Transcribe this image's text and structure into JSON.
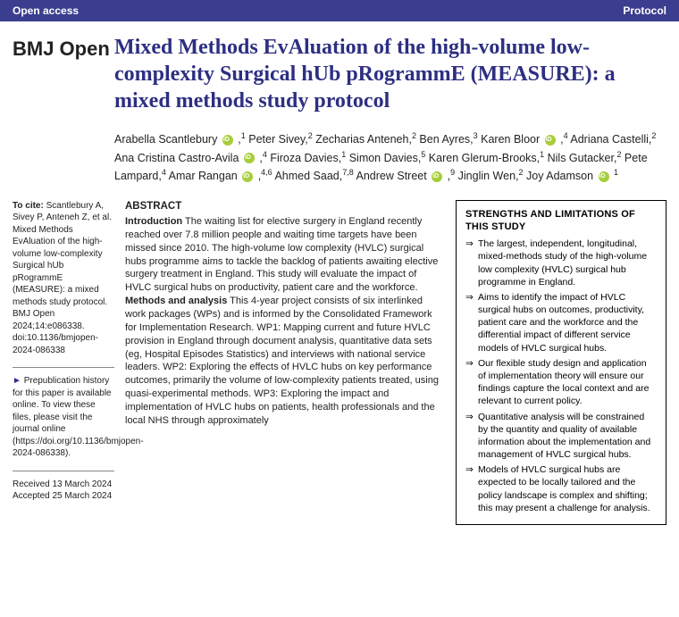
{
  "topbar": {
    "left": "Open access",
    "right": "Protocol"
  },
  "journal": "BMJ Open",
  "title": "Mixed Methods EvAluation of the high-volume low-complexity Surgical hUb pRogrammE (MEASURE): a mixed methods study protocol",
  "authors_html": "Arabella Scantlebury <span class='orcid'></span> ,<span class='sup'>1</span> Peter Sivey,<span class='sup'>2</span> Zecharias Anteneh,<span class='sup'>2</span> Ben Ayres,<span class='sup'>3</span> Karen Bloor <span class='orcid'></span> ,<span class='sup'>4</span> Adriana Castelli,<span class='sup'>2</span> Ana Cristina Castro-Avila <span class='orcid'></span> ,<span class='sup'>4</span> Firoza Davies,<span class='sup'>1</span> Simon Davies,<span class='sup'>5</span> Karen Glerum-Brooks,<span class='sup'>1</span> Nils Gutacker,<span class='sup'>2</span> Pete Lampard,<span class='sup'>4</span> Amar Rangan <span class='orcid'></span> ,<span class='sup'>4,6</span> Ahmed Saad,<span class='sup'>7,8</span> Andrew Street <span class='orcid'></span> ,<span class='sup'>9</span> Jinglin Wen,<span class='sup'>2</span> Joy Adamson <span class='orcid'></span> <span class='sup'>1</span>",
  "cite": {
    "lead": "To cite:",
    "text": " Scantlebury A, Sivey P, Anteneh Z, et al. Mixed Methods EvAluation of the high-volume low-complexity Surgical hUb pRogrammE (MEASURE): a mixed methods study protocol. BMJ Open 2024;14:e086338. doi:10.1136/bmjopen-2024-086338"
  },
  "prepub": "Prepublication history for this paper is available online. To view these files, please visit the journal online (https://doi.org/10.1136/bmjopen-2024-086338).",
  "dates": {
    "received": "Received 13 March 2024",
    "accepted": "Accepted 25 March 2024"
  },
  "abstract": {
    "heading": "ABSTRACT",
    "intro_label": "Introduction",
    "intro": " The waiting list for elective surgery in England recently reached over 7.8 million people and waiting time targets have been missed since 2010. The high-volume low complexity (HVLC) surgical hubs programme aims to tackle the backlog of patients awaiting elective surgery treatment in England. This study will evaluate the impact of HVLC surgical hubs on productivity, patient care and the workforce.",
    "methods_label": "Methods and analysis",
    "methods": " This 4-year project consists of six interlinked work packages (WPs) and is informed by the Consolidated Framework for Implementation Research. WP1: Mapping current and future HVLC provision in England through document analysis, quantitative data sets (eg, Hospital Episodes Statistics) and interviews with national service leaders. WP2: Exploring the effects of HVLC hubs on key performance outcomes, primarily the volume of low-complexity patients treated, using quasi-experimental methods. WP3: Exploring the impact and implementation of HVLC hubs on patients, health professionals and the local NHS through approximately"
  },
  "strengths": {
    "title": "STRENGTHS AND LIMITATIONS OF THIS STUDY",
    "items": [
      "The largest, independent, longitudinal, mixed-methods study of the high-volume low complexity (HVLC) surgical hub programme in England.",
      "Aims to identify the impact of HVLC surgical hubs on outcomes, productivity, patient care and the workforce and the differential impact of different service models of HVLC surgical hubs.",
      "Our flexible study design and application of implementation theory will ensure our findings capture the local context and are relevant to current policy.",
      "Quantitative analysis will be constrained by the quantity and quality of available information about the implementation and management of HVLC surgical hubs.",
      "Models of HVLC surgical hubs are expected to be locally tailored and the policy landscape is complex and shifting; this may present a challenge for analysis."
    ]
  }
}
